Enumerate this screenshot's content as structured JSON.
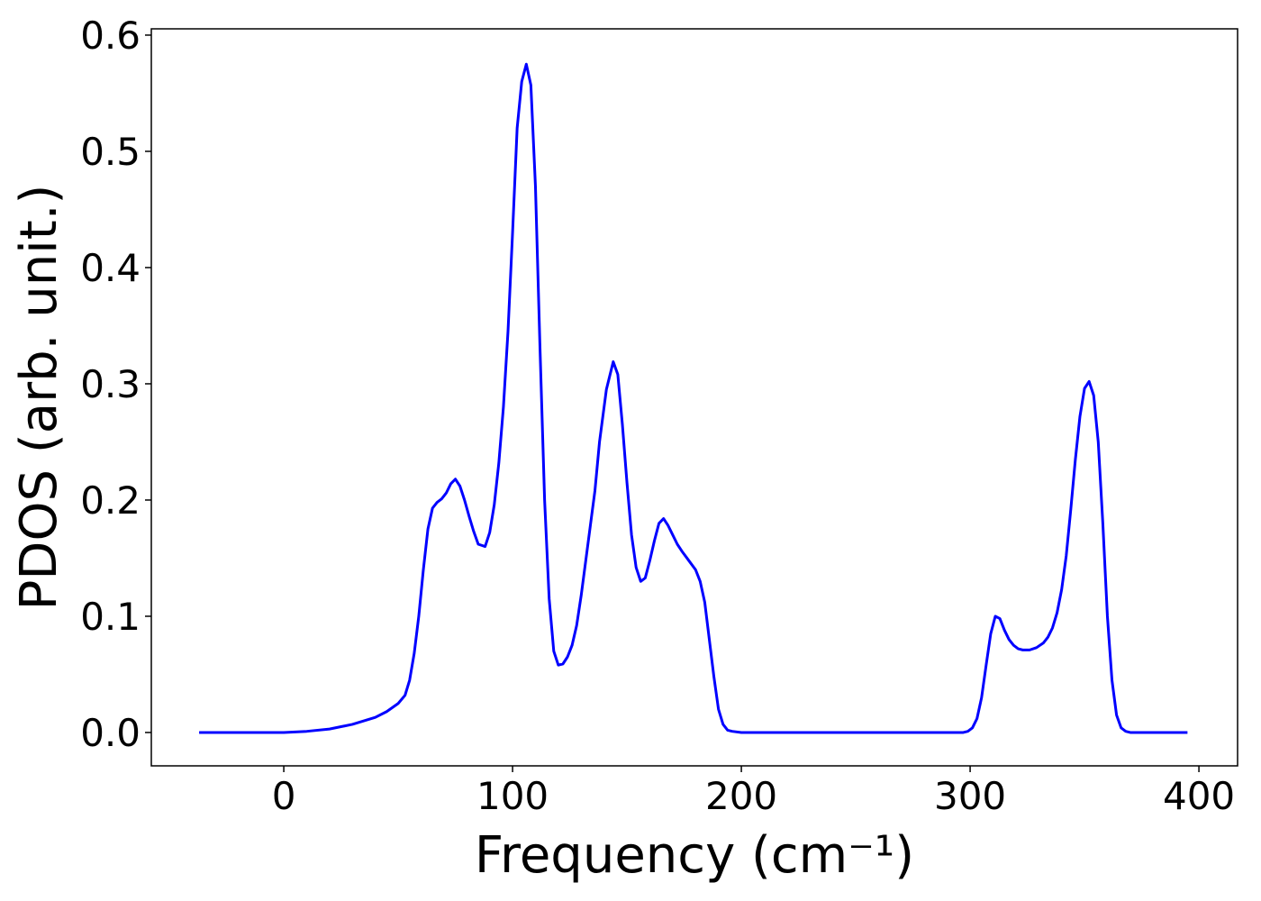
{
  "chart_data": {
    "type": "line",
    "xlabel": "Frequency (cm⁻¹)",
    "ylabel": "PDOS (arb. unit.)",
    "xlim": [
      -57.9,
      416.9
    ],
    "ylim": [
      -0.0287,
      0.6054
    ],
    "xticks": [
      0,
      100,
      200,
      300,
      400
    ],
    "yticks": [
      {
        "value": 0,
        "label": "0.0"
      },
      0.1,
      0.2,
      0.3,
      0.4,
      0.5,
      0.6
    ],
    "series": [
      {
        "color": "#0000ff",
        "x": [
          -37,
          0,
          10,
          20,
          30,
          40,
          45,
          50,
          53,
          55,
          57,
          59,
          61,
          63,
          65,
          67,
          69,
          71,
          73,
          75,
          77,
          79,
          81,
          83,
          85,
          88,
          90,
          92,
          94,
          96,
          98,
          100,
          102,
          104,
          106,
          108,
          110,
          112,
          114,
          116,
          118,
          120,
          122,
          124,
          126,
          128,
          130,
          132,
          134,
          136,
          138,
          141,
          144,
          146,
          148,
          150,
          152,
          154,
          156,
          158,
          160,
          162,
          164,
          166,
          168,
          170,
          172,
          174,
          177,
          180,
          182,
          184,
          186,
          188,
          190,
          192,
          194,
          196,
          200,
          297,
          299,
          301,
          303,
          305,
          307,
          309,
          311,
          313,
          315,
          317,
          319,
          321,
          323,
          326,
          329,
          332,
          334,
          336,
          338,
          340,
          342,
          344,
          346,
          348,
          350,
          352,
          354,
          356,
          358,
          360,
          362,
          364,
          366,
          368,
          370,
          395
        ],
        "values": [
          0,
          0,
          0.001,
          0.003,
          0.007,
          0.013,
          0.018,
          0.025,
          0.032,
          0.045,
          0.068,
          0.1,
          0.14,
          0.175,
          0.193,
          0.198,
          0.201,
          0.206,
          0.214,
          0.218,
          0.212,
          0.2,
          0.186,
          0.173,
          0.162,
          0.16,
          0.172,
          0.196,
          0.232,
          0.28,
          0.345,
          0.43,
          0.52,
          0.56,
          0.575,
          0.557,
          0.47,
          0.33,
          0.2,
          0.115,
          0.07,
          0.058,
          0.059,
          0.065,
          0.075,
          0.092,
          0.118,
          0.148,
          0.178,
          0.208,
          0.25,
          0.295,
          0.319,
          0.308,
          0.265,
          0.215,
          0.17,
          0.142,
          0.13,
          0.133,
          0.148,
          0.165,
          0.18,
          0.184,
          0.178,
          0.17,
          0.162,
          0.156,
          0.148,
          0.14,
          0.13,
          0.112,
          0.08,
          0.048,
          0.02,
          0.007,
          0.002,
          0.001,
          0,
          0,
          0.001,
          0.004,
          0.012,
          0.03,
          0.058,
          0.085,
          0.1,
          0.098,
          0.088,
          0.08,
          0.075,
          0.072,
          0.071,
          0.071,
          0.073,
          0.077,
          0.082,
          0.09,
          0.103,
          0.123,
          0.152,
          0.192,
          0.235,
          0.272,
          0.296,
          0.302,
          0.29,
          0.25,
          0.18,
          0.1,
          0.045,
          0.015,
          0.004,
          0.001,
          0,
          0
        ]
      }
    ]
  }
}
